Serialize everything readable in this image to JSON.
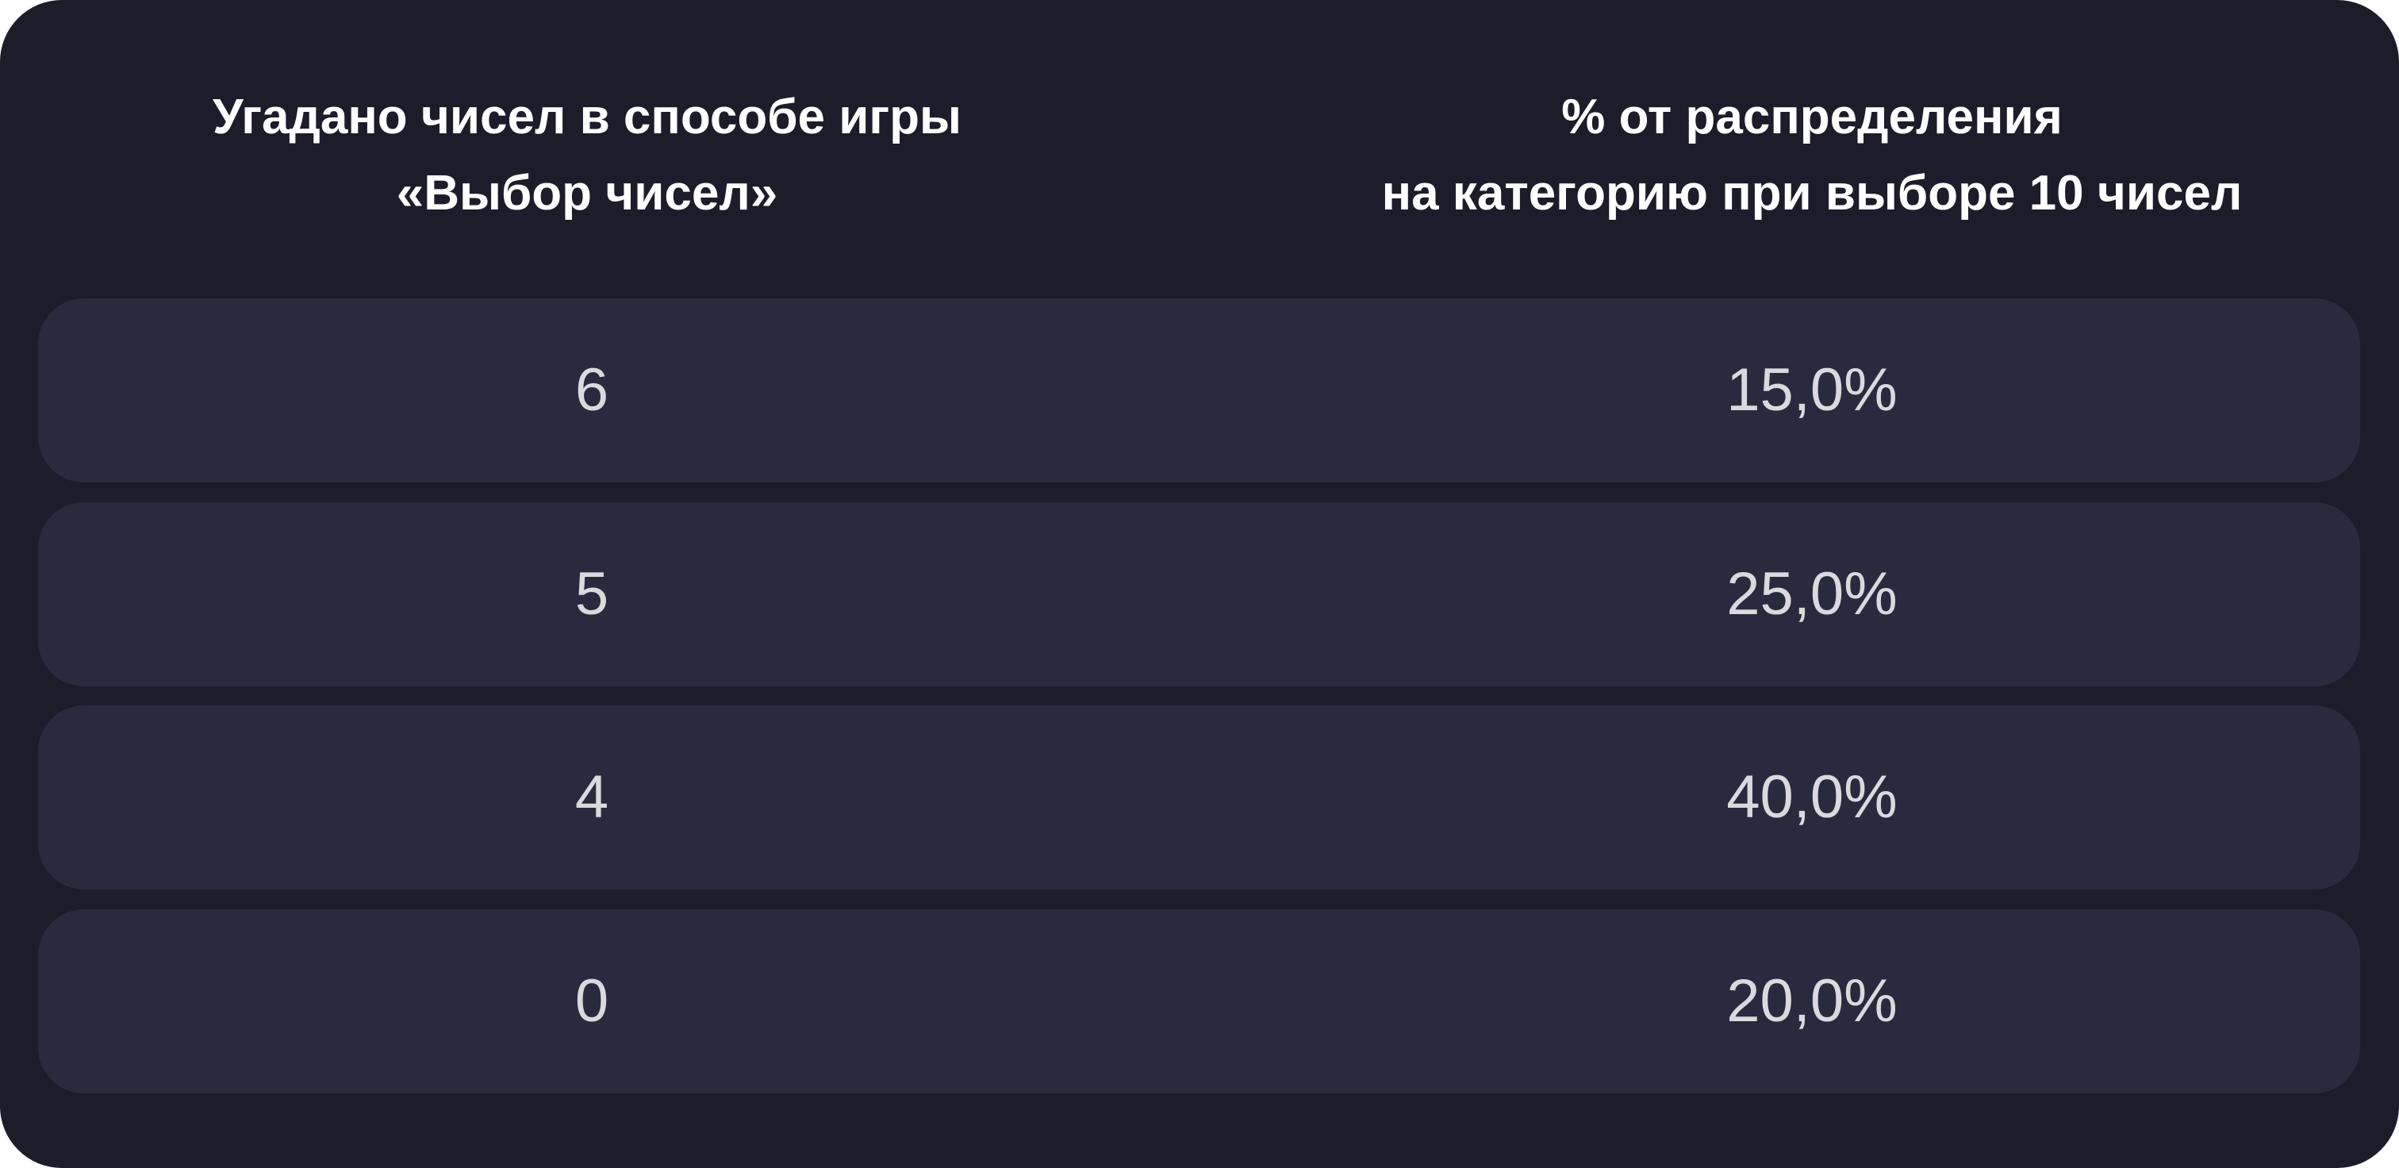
{
  "table": {
    "headers": [
      [
        "Угадано чисел в способе игры",
        "«Выбор чисел»"
      ],
      [
        "% от распределения",
        "на категорию при выборе 10 чисел"
      ]
    ],
    "rows": [
      {
        "guessed": "6",
        "percent": "15,0%"
      },
      {
        "guessed": "5",
        "percent": "25,0%"
      },
      {
        "guessed": "4",
        "percent": "40,0%"
      },
      {
        "guessed": "0",
        "percent": "20,0%"
      }
    ]
  },
  "colors": {
    "background": "#1d1c2a",
    "row": "#2a2a3e",
    "header_text": "#ffffff",
    "cell_text": "#d9d9de"
  }
}
